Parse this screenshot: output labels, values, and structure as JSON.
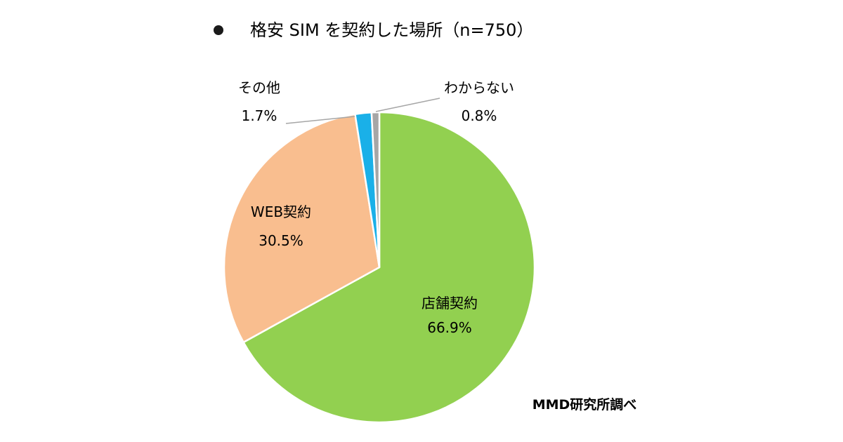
{
  "title": "格安 SIM を契約した場所（n=750）",
  "source": "MMD研究所調べ",
  "chart_data": {
    "type": "pie",
    "start": "12 o'clock",
    "direction": "clockwise",
    "legend": "none",
    "slices": [
      {
        "label": "店舗契約",
        "value": 66.9,
        "value_label": "66.9%",
        "color": "#92d050"
      },
      {
        "label": "WEB契約",
        "value": 30.5,
        "value_label": "30.5%",
        "color": "#f9be8f"
      },
      {
        "label": "その他",
        "value": 1.7,
        "value_label": "1.7%",
        "color": "#1ab0e8"
      },
      {
        "label": "わからない",
        "value": 0.8,
        "value_label": "0.8%",
        "color": "#a6a6a6"
      }
    ]
  }
}
